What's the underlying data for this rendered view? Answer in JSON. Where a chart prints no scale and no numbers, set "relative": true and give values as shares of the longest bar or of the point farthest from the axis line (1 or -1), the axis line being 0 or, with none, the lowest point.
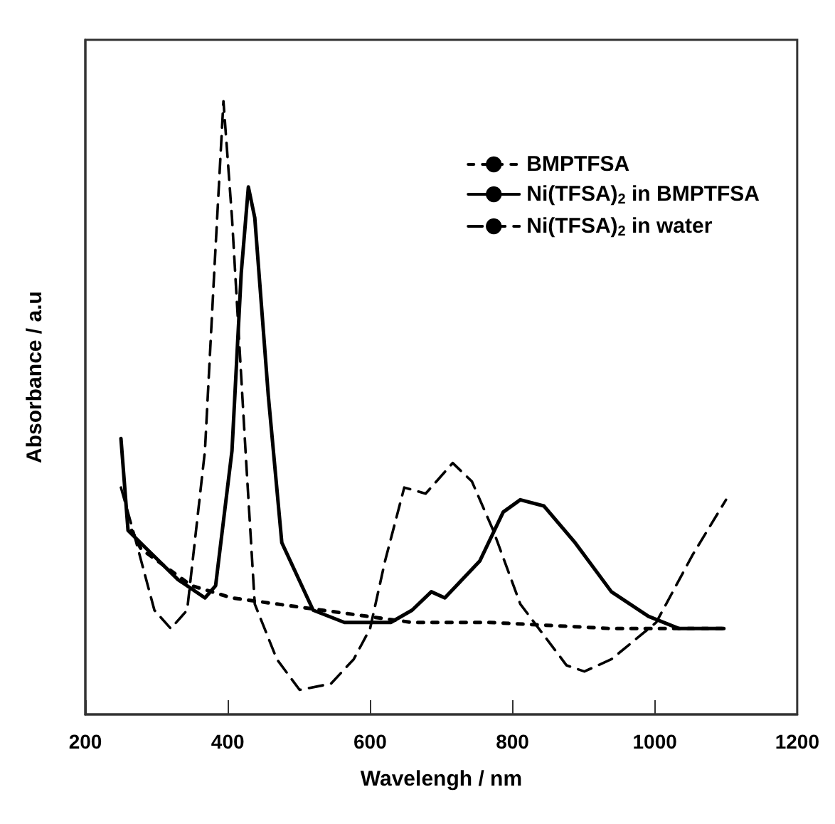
{
  "chart_data": {
    "type": "line",
    "xlabel": "Wavelengh / nm",
    "ylabel": "Absorbance / a.u",
    "relative": true,
    "xlim": [
      200,
      1200
    ],
    "xticks": [
      200,
      400,
      600,
      800,
      1000,
      1200
    ],
    "grid": false,
    "legend": "top right",
    "marker": "none",
    "tick_labels": "x",
    "series": [
      {
        "name": "BMPTFSA",
        "color": "#000000",
        "line_style": "dotted",
        "x": [
          265,
          278,
          349,
          406,
          533,
          659,
          768,
          939,
          1097
        ],
        "values": [
          0.3,
          0.27,
          0.21,
          0.19,
          0.17,
          0.15,
          0.15,
          0.14,
          0.14
        ]
      },
      {
        "name": "Ni(TFSA)$_{2}$ in BMPTFSA",
        "color": "#000000",
        "line_style": "solid",
        "x": [
          250,
          260,
          286,
          330,
          368,
          383,
          406,
          419,
          429,
          438,
          457,
          476,
          520,
          564,
          629,
          659,
          686,
          705,
          754,
          787,
          811,
          844,
          888,
          939,
          991,
          1034,
          1097
        ],
        "values": [
          0.45,
          0.3,
          0.27,
          0.22,
          0.19,
          0.21,
          0.43,
          0.72,
          0.86,
          0.81,
          0.52,
          0.28,
          0.17,
          0.15,
          0.15,
          0.17,
          0.2,
          0.19,
          0.25,
          0.33,
          0.35,
          0.34,
          0.28,
          0.2,
          0.16,
          0.14,
          0.14
        ]
      },
      {
        "name": "Ni(TFSA)$_{2}$ in water",
        "color": "#000000",
        "line_style": "dashed",
        "x": [
          250,
          267,
          297,
          320,
          343,
          368,
          381,
          394,
          406,
          425,
          438,
          469,
          501,
          545,
          577,
          600,
          621,
          648,
          678,
          716,
          743,
          773,
          811,
          876,
          901,
          939,
          1002,
          1053,
          1100
        ],
        "values": [
          0.37,
          0.3,
          0.17,
          0.14,
          0.17,
          0.43,
          0.72,
          1.0,
          0.81,
          0.43,
          0.18,
          0.09,
          0.04,
          0.05,
          0.09,
          0.14,
          0.25,
          0.37,
          0.36,
          0.41,
          0.38,
          0.3,
          0.18,
          0.08,
          0.07,
          0.09,
          0.15,
          0.26,
          0.35
        ]
      }
    ]
  }
}
